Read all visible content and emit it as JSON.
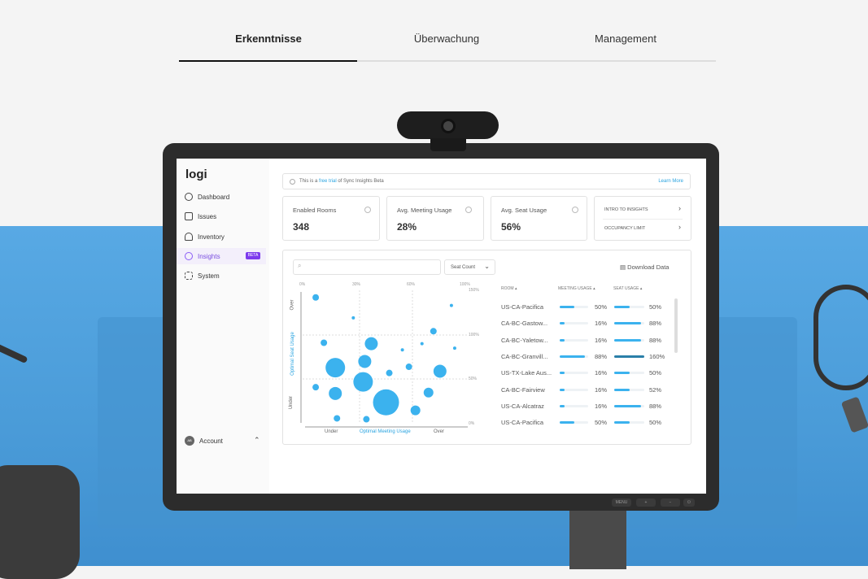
{
  "tabs": [
    {
      "label": "Erkenntnisse",
      "active": true
    },
    {
      "label": "Überwachung",
      "active": false
    },
    {
      "label": "Management",
      "active": false
    }
  ],
  "monitor": {
    "buttons": [
      "MENU",
      "+",
      "−",
      "⏻"
    ]
  },
  "app": {
    "logo": "logi",
    "sidebar": {
      "items": [
        {
          "label": "Dashboard",
          "icon": "dashboard-icon"
        },
        {
          "label": "Issues",
          "icon": "issues-icon"
        },
        {
          "label": "Inventory",
          "icon": "cloud-icon"
        },
        {
          "label": "Insights",
          "icon": "lightbulb-icon",
          "active": true,
          "badge": "BETA"
        },
        {
          "label": "System",
          "icon": "gear-icon"
        }
      ],
      "account": {
        "label": "Account",
        "initials": "AB"
      }
    },
    "banner": {
      "prefix": "This is a ",
      "link": "free trial",
      "suffix": " of Sync Insights Beta",
      "action": "Learn More"
    },
    "cards": [
      {
        "label": "Enabled Rooms",
        "value": "348"
      },
      {
        "label": "Avg. Meeting Usage",
        "value": "28%"
      },
      {
        "label": "Avg. Seat Usage",
        "value": "56%"
      }
    ],
    "links": [
      {
        "label": "INTRO TO INSIGHTS"
      },
      {
        "label": "OCCUPANCY LIMIT"
      }
    ],
    "search": {
      "placeholder": ""
    },
    "dropdown": {
      "value": "Seat Count"
    },
    "download": "Download Data",
    "colors": {
      "accent": "#7c3aed",
      "bubble": "#3bb2ee",
      "over": "#2a7fa8"
    },
    "table": {
      "headers": [
        "ROOM",
        "MEETING USAGE",
        "SEAT USAGE"
      ],
      "rows": [
        {
          "room": "US-CA-Pacifica",
          "meeting": 50,
          "meeting_label": "50%",
          "seat": 50,
          "seat_label": "50%"
        },
        {
          "room": "CA-BC-Gastow...",
          "meeting": 16,
          "meeting_label": "16%",
          "seat": 88,
          "seat_label": "88%"
        },
        {
          "room": "CA-BC-Yaletow...",
          "meeting": 16,
          "meeting_label": "16%",
          "seat": 88,
          "seat_label": "88%"
        },
        {
          "room": "CA-BC-Granvill...",
          "meeting": 88,
          "meeting_label": "88%",
          "seat": 160,
          "seat_label": "160%"
        },
        {
          "room": "US-TX-Lake Aus...",
          "meeting": 16,
          "meeting_label": "16%",
          "seat": 50,
          "seat_label": "50%"
        },
        {
          "room": "CA-BC-Fairview",
          "meeting": 16,
          "meeting_label": "16%",
          "seat": 52,
          "seat_label": "52%"
        },
        {
          "room": "US-CA-Alcatraz",
          "meeting": 16,
          "meeting_label": "16%",
          "seat": 88,
          "seat_label": "88%"
        },
        {
          "room": "US-CA-Pacifica",
          "meeting": 50,
          "meeting_label": "50%",
          "seat": 50,
          "seat_label": "50%"
        }
      ]
    }
  },
  "chart_data": {
    "type": "scatter",
    "xlabel": "Optimal Meeting Usage",
    "ylabel": "Optimal Seat Usage",
    "x_zone_labels": [
      "Under",
      "Over"
    ],
    "y_zone_labels": [
      "Over",
      "Under"
    ],
    "x_ticks": [
      "0%",
      "30%",
      "60%",
      "100%"
    ],
    "y_ticks": [
      "150%",
      "100%",
      "50%",
      "0%"
    ],
    "xlim": [
      0,
      100
    ],
    "ylim": [
      0,
      150
    ],
    "grid": true,
    "points": [
      {
        "x": 8,
        "y": 142,
        "size": 1
      },
      {
        "x": 31,
        "y": 119,
        "size": 0.5
      },
      {
        "x": 91,
        "y": 133,
        "size": 0.5
      },
      {
        "x": 80,
        "y": 104,
        "size": 1
      },
      {
        "x": 13,
        "y": 91,
        "size": 1
      },
      {
        "x": 42,
        "y": 90,
        "size": 2
      },
      {
        "x": 61,
        "y": 83,
        "size": 0.5
      },
      {
        "x": 73,
        "y": 90,
        "size": 0.5
      },
      {
        "x": 93,
        "y": 85,
        "size": 0.5
      },
      {
        "x": 38,
        "y": 70,
        "size": 2
      },
      {
        "x": 20,
        "y": 63,
        "size": 3
      },
      {
        "x": 65,
        "y": 64,
        "size": 1
      },
      {
        "x": 53,
        "y": 57,
        "size": 1
      },
      {
        "x": 84,
        "y": 59,
        "size": 2
      },
      {
        "x": 37,
        "y": 47,
        "size": 3
      },
      {
        "x": 8,
        "y": 41,
        "size": 1
      },
      {
        "x": 20,
        "y": 34,
        "size": 2
      },
      {
        "x": 77,
        "y": 35,
        "size": 1.5
      },
      {
        "x": 51,
        "y": 24,
        "size": 4
      },
      {
        "x": 69,
        "y": 15,
        "size": 1.5
      },
      {
        "x": 21,
        "y": 6,
        "size": 1
      },
      {
        "x": 39,
        "y": 5,
        "size": 1
      }
    ]
  }
}
